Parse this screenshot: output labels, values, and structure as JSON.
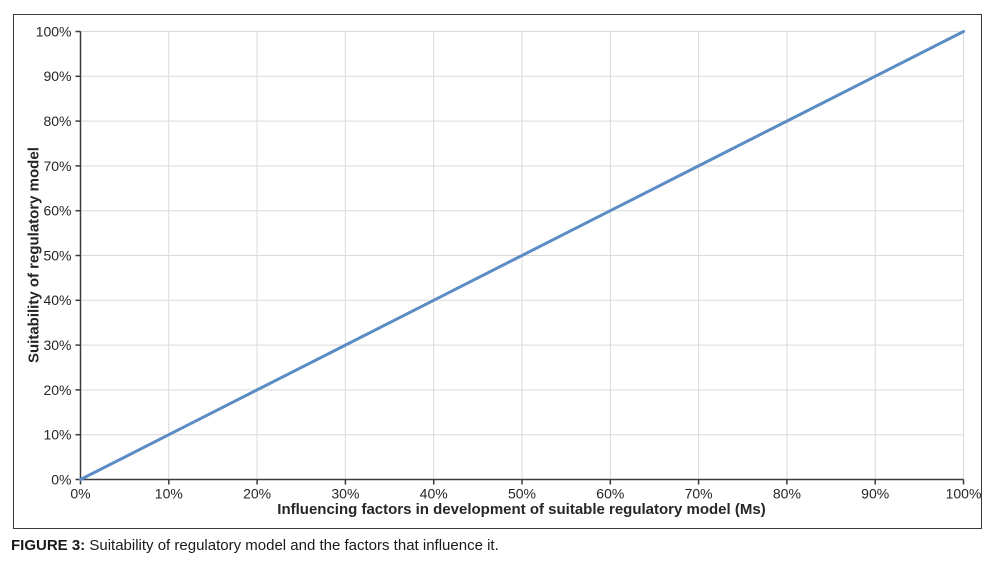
{
  "figure": {
    "caption_label": "FIGURE 3:",
    "caption_text": " Suitability of regulatory model and the factors that influence it."
  },
  "colors": {
    "line": "#5b8cc4",
    "grid": "#d9d9d9",
    "axis": "#3a3a3a",
    "tick": "#3a3a3a",
    "text": "#262626",
    "border": "#3a3a3a",
    "background": "#ffffff"
  },
  "chart_data": {
    "type": "line",
    "title": "",
    "xlabel": "Influencing factors in development of suitable regulatory model (Ms)",
    "ylabel": "Suitability of regulatory model",
    "x": [
      0,
      10,
      20,
      30,
      40,
      50,
      60,
      70,
      80,
      90,
      100
    ],
    "series": [
      {
        "values": [
          0,
          10,
          20,
          30,
          40,
          50,
          60,
          70,
          80,
          90,
          100
        ]
      }
    ],
    "x_tick_labels": [
      "0%",
      "10%",
      "20%",
      "30%",
      "40%",
      "50%",
      "60%",
      "70%",
      "80%",
      "90%",
      "100%"
    ],
    "y_tick_labels": [
      "0%",
      "10%",
      "20%",
      "30%",
      "40%",
      "50%",
      "60%",
      "70%",
      "80%",
      "90%",
      "100%"
    ],
    "xlim": [
      0,
      100
    ],
    "ylim": [
      0,
      100
    ],
    "grid": true,
    "legend": "none",
    "markers": false
  }
}
